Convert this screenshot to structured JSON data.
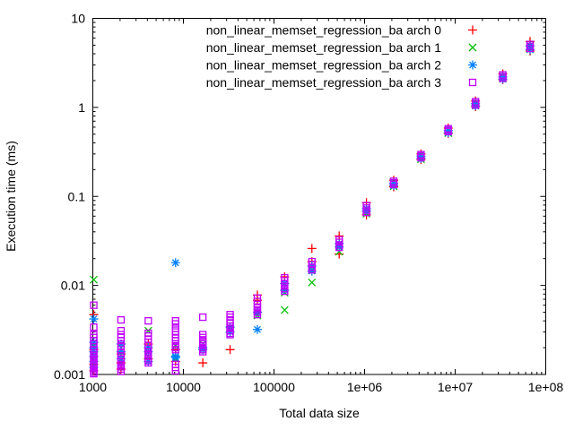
{
  "chart_data": {
    "type": "scatter",
    "title": "",
    "xlabel": "Total data size",
    "ylabel": "Execution time (ms)",
    "x_scale": "log",
    "y_scale": "log",
    "xlim": [
      1000,
      100000000
    ],
    "ylim": [
      0.001,
      10
    ],
    "grid": false,
    "legend_position": "top-right-inside",
    "xticks": [
      {
        "v": 1000,
        "label": "1000"
      },
      {
        "v": 10000,
        "label": "10000"
      },
      {
        "v": 100000,
        "label": "100000"
      },
      {
        "v": 1000000,
        "label": "1e+06"
      },
      {
        "v": 10000000,
        "label": "1e+07"
      },
      {
        "v": 100000000,
        "label": "1e+08"
      }
    ],
    "yticks": [
      {
        "v": 0.001,
        "label": "0.001"
      },
      {
        "v": 0.01,
        "label": "0.01"
      },
      {
        "v": 0.1,
        "label": "0.1"
      },
      {
        "v": 1,
        "label": "1"
      },
      {
        "v": 10,
        "label": "10"
      }
    ],
    "series": [
      {
        "name": "non_linear_memset_regression_ba arch 0",
        "color": "#ff0000",
        "marker": "plus",
        "points": [
          [
            1024,
            0.0047
          ],
          [
            1024,
            0.0019
          ],
          [
            1024,
            0.0016
          ],
          [
            1024,
            0.0013
          ],
          [
            1024,
            0.0011
          ],
          [
            2048,
            0.0017
          ],
          [
            2048,
            0.00135
          ],
          [
            2048,
            0.00115
          ],
          [
            4096,
            0.0022
          ],
          [
            4096,
            0.0015
          ],
          [
            8192,
            0.0019
          ],
          [
            8192,
            0.0014
          ],
          [
            16384,
            0.00135
          ],
          [
            32768,
            0.0019
          ],
          [
            65536,
            0.0078
          ],
          [
            65536,
            0.0068
          ],
          [
            131072,
            0.0125
          ],
          [
            262144,
            0.026
          ],
          [
            262144,
            0.0185
          ],
          [
            524288,
            0.036
          ],
          [
            524288,
            0.0225
          ],
          [
            1048576,
            0.085
          ],
          [
            1048576,
            0.062
          ],
          [
            2097152,
            0.152
          ],
          [
            2097152,
            0.128
          ],
          [
            4194304,
            0.3
          ],
          [
            4194304,
            0.26
          ],
          [
            8388608,
            0.585
          ],
          [
            8388608,
            0.51
          ],
          [
            16777216,
            1.18
          ],
          [
            16777216,
            1.02
          ],
          [
            33554432,
            2.38
          ],
          [
            33554432,
            2.05
          ],
          [
            67108864,
            5.5
          ],
          [
            67108864,
            4.3
          ]
        ]
      },
      {
        "name": "non_linear_memset_regression_ba arch 1",
        "color": "#00c000",
        "marker": "cross",
        "points": [
          [
            1024,
            0.0116
          ],
          [
            1024,
            0.0021
          ],
          [
            1024,
            0.0017
          ],
          [
            1024,
            0.0014
          ],
          [
            1024,
            0.0012
          ],
          [
            2048,
            0.002
          ],
          [
            2048,
            0.0015
          ],
          [
            4096,
            0.0031
          ],
          [
            4096,
            0.0016
          ],
          [
            8192,
            0.0021
          ],
          [
            8192,
            0.0015
          ],
          [
            16384,
            0.0022
          ],
          [
            32768,
            0.0032
          ],
          [
            65536,
            0.0046
          ],
          [
            131072,
            0.0083
          ],
          [
            131072,
            0.0053
          ],
          [
            262144,
            0.0148
          ],
          [
            262144,
            0.0108
          ],
          [
            524288,
            0.0285
          ],
          [
            524288,
            0.024
          ],
          [
            1048576,
            0.072
          ],
          [
            1048576,
            0.064
          ],
          [
            2097152,
            0.143
          ],
          [
            2097152,
            0.13
          ],
          [
            4194304,
            0.288
          ],
          [
            4194304,
            0.262
          ],
          [
            8388608,
            0.56
          ],
          [
            8388608,
            0.515
          ],
          [
            16777216,
            1.12
          ],
          [
            16777216,
            1.05
          ],
          [
            33554432,
            2.25
          ],
          [
            33554432,
            2.1
          ],
          [
            67108864,
            4.95
          ],
          [
            67108864,
            4.5
          ]
        ]
      },
      {
        "name": "non_linear_memset_regression_ba arch 2",
        "color": "#0080ff",
        "marker": "asterisk",
        "points": [
          [
            1024,
            0.0042
          ],
          [
            1024,
            0.0023
          ],
          [
            1024,
            0.002
          ],
          [
            1024,
            0.0018
          ],
          [
            1024,
            0.0016
          ],
          [
            1024,
            0.0014
          ],
          [
            1024,
            0.0012
          ],
          [
            2048,
            0.0022
          ],
          [
            2048,
            0.0018
          ],
          [
            2048,
            0.0015
          ],
          [
            4096,
            0.002
          ],
          [
            4096,
            0.0018
          ],
          [
            4096,
            0.0014
          ],
          [
            8192,
            0.018
          ],
          [
            8192,
            0.0016
          ],
          [
            8192,
            0.00155
          ],
          [
            16384,
            0.002
          ],
          [
            16384,
            0.0019
          ],
          [
            32768,
            0.0034
          ],
          [
            32768,
            0.003
          ],
          [
            65536,
            0.005
          ],
          [
            65536,
            0.0032
          ],
          [
            131072,
            0.0105
          ],
          [
            131072,
            0.0088
          ],
          [
            262144,
            0.0165
          ],
          [
            262144,
            0.0145
          ],
          [
            524288,
            0.0295
          ],
          [
            524288,
            0.027
          ],
          [
            1048576,
            0.073
          ],
          [
            1048576,
            0.068
          ],
          [
            2097152,
            0.14
          ],
          [
            2097152,
            0.132
          ],
          [
            4194304,
            0.283
          ],
          [
            4194304,
            0.268
          ],
          [
            8388608,
            0.55
          ],
          [
            8388608,
            0.52
          ],
          [
            16777216,
            1.1
          ],
          [
            16777216,
            1.04
          ],
          [
            33554432,
            2.2
          ],
          [
            33554432,
            2.08
          ],
          [
            67108864,
            4.9
          ],
          [
            67108864,
            4.45
          ]
        ]
      },
      {
        "name": "non_linear_memset_regression_ba arch 3",
        "color": "#c000ff",
        "marker": "square",
        "points": [
          [
            1024,
            0.006
          ],
          [
            1024,
            0.0034
          ],
          [
            1024,
            0.0028
          ],
          [
            1024,
            0.0026
          ],
          [
            1024,
            0.0024
          ],
          [
            1024,
            0.0022
          ],
          [
            1024,
            0.00205
          ],
          [
            1024,
            0.0019
          ],
          [
            1024,
            0.00175
          ],
          [
            1024,
            0.00165
          ],
          [
            1024,
            0.00155
          ],
          [
            1024,
            0.00145
          ],
          [
            1024,
            0.00135
          ],
          [
            1024,
            0.00128
          ],
          [
            1024,
            0.00122
          ],
          [
            1024,
            0.00116
          ],
          [
            1024,
            0.00111
          ],
          [
            1024,
            0.00106
          ],
          [
            1024,
            0.00102
          ],
          [
            2048,
            0.0041
          ],
          [
            2048,
            0.0031
          ],
          [
            2048,
            0.0028
          ],
          [
            2048,
            0.0026
          ],
          [
            2048,
            0.0024
          ],
          [
            2048,
            0.0021
          ],
          [
            2048,
            0.0019
          ],
          [
            2048,
            0.00175
          ],
          [
            2048,
            0.00162
          ],
          [
            2048,
            0.0015
          ],
          [
            2048,
            0.0014
          ],
          [
            2048,
            0.0013
          ],
          [
            2048,
            0.00122
          ],
          [
            2048,
            0.00115
          ],
          [
            2048,
            0.00108
          ],
          [
            4096,
            0.004
          ],
          [
            4096,
            0.0029
          ],
          [
            4096,
            0.0027
          ],
          [
            4096,
            0.0025
          ],
          [
            4096,
            0.0023
          ],
          [
            4096,
            0.0021
          ],
          [
            4096,
            0.00195
          ],
          [
            4096,
            0.0018
          ],
          [
            4096,
            0.0017
          ],
          [
            4096,
            0.0016
          ],
          [
            4096,
            0.0015
          ],
          [
            4096,
            0.00142
          ],
          [
            4096,
            0.00135
          ],
          [
            8192,
            0.004
          ],
          [
            8192,
            0.0037
          ],
          [
            8192,
            0.0033
          ],
          [
            8192,
            0.003
          ],
          [
            8192,
            0.0028
          ],
          [
            8192,
            0.0026
          ],
          [
            8192,
            0.0024
          ],
          [
            8192,
            0.0022
          ],
          [
            8192,
            0.0021
          ],
          [
            8192,
            0.002
          ],
          [
            8192,
            0.0019
          ],
          [
            8192,
            0.0013
          ],
          [
            8192,
            0.0012
          ],
          [
            8192,
            0.0011
          ],
          [
            16384,
            0.0044
          ],
          [
            16384,
            0.0028
          ],
          [
            16384,
            0.0026
          ],
          [
            16384,
            0.00245
          ],
          [
            16384,
            0.0023
          ],
          [
            16384,
            0.0022
          ],
          [
            16384,
            0.0021
          ],
          [
            16384,
            0.002
          ],
          [
            16384,
            0.0019
          ],
          [
            16384,
            0.0018
          ],
          [
            32768,
            0.0047
          ],
          [
            32768,
            0.0044
          ],
          [
            32768,
            0.0041
          ],
          [
            32768,
            0.0038
          ],
          [
            32768,
            0.0035
          ],
          [
            32768,
            0.0033
          ],
          [
            32768,
            0.0031
          ],
          [
            32768,
            0.0029
          ],
          [
            32768,
            0.0028
          ],
          [
            65536,
            0.0072
          ],
          [
            65536,
            0.0066
          ],
          [
            65536,
            0.0061
          ],
          [
            65536,
            0.0057
          ],
          [
            65536,
            0.0053
          ],
          [
            65536,
            0.005
          ],
          [
            65536,
            0.0047
          ],
          [
            131072,
            0.0122
          ],
          [
            131072,
            0.0113
          ],
          [
            131072,
            0.0105
          ],
          [
            131072,
            0.0098
          ],
          [
            131072,
            0.0092
          ],
          [
            131072,
            0.0086
          ],
          [
            262144,
            0.0185
          ],
          [
            262144,
            0.0172
          ],
          [
            262144,
            0.016
          ],
          [
            262144,
            0.015
          ],
          [
            524288,
            0.0325
          ],
          [
            524288,
            0.0305
          ],
          [
            524288,
            0.0285
          ],
          [
            524288,
            0.0268
          ],
          [
            1048576,
            0.079
          ],
          [
            1048576,
            0.074
          ],
          [
            1048576,
            0.07
          ],
          [
            1048576,
            0.066
          ],
          [
            2097152,
            0.148
          ],
          [
            2097152,
            0.142
          ],
          [
            2097152,
            0.136
          ],
          [
            4194304,
            0.295
          ],
          [
            4194304,
            0.285
          ],
          [
            4194304,
            0.272
          ],
          [
            8388608,
            0.575
          ],
          [
            8388608,
            0.555
          ],
          [
            8388608,
            0.535
          ],
          [
            16777216,
            1.16
          ],
          [
            16777216,
            1.11
          ],
          [
            16777216,
            1.06
          ],
          [
            33554432,
            2.32
          ],
          [
            33554432,
            2.22
          ],
          [
            33554432,
            2.12
          ],
          [
            67108864,
            5.1
          ],
          [
            67108864,
            4.85
          ],
          [
            67108864,
            4.6
          ]
        ]
      }
    ]
  }
}
